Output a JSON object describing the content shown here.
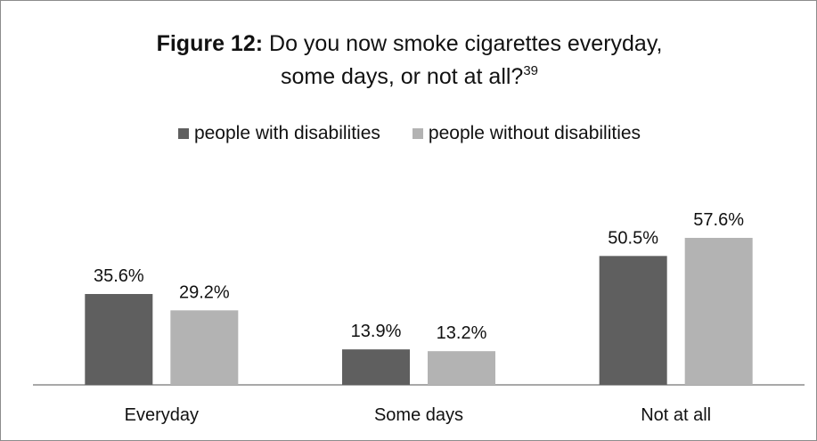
{
  "title": {
    "prefix": "Figure 12:",
    "line1": " Do you now smoke cigarettes everyday,",
    "line2": "some days, or not at all?",
    "footnote": "39"
  },
  "chart_data": {
    "type": "bar",
    "categories": [
      "Everyday",
      "Some days",
      "Not at all"
    ],
    "series": [
      {
        "name": "people with disabilities",
        "values": [
          35.6,
          13.9,
          50.5
        ],
        "labels": [
          "35.6%",
          "13.9%",
          "50.5%"
        ],
        "color": "#5f5f5f"
      },
      {
        "name": "people without disabilities",
        "values": [
          29.2,
          13.2,
          57.6
        ],
        "labels": [
          "29.2%",
          "13.2%",
          "57.6%"
        ],
        "color": "#b3b3b3"
      }
    ],
    "ylim": [
      0,
      70
    ],
    "grid": false,
    "legend": "top"
  }
}
